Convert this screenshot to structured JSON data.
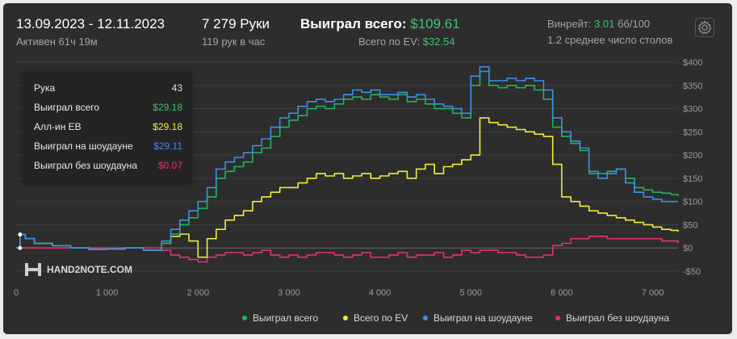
{
  "header": {
    "date_range": "13.09.2023 - 12.11.2023",
    "active": "Активен 61ч 19м",
    "hands": "7 279 Руки",
    "hands_per_hour": "119 рук в час",
    "won_total_label": "Выиграл всего:",
    "won_total_value": "$109.61",
    "ev_total_label": "Всего по EV:",
    "ev_total_value": "$32.54",
    "winrate_label": "Винрейт:",
    "winrate_value": "3.01",
    "winrate_unit": "бб/100",
    "avg_tables": "1.2 среднее число столов",
    "settings_icon": "gear-icon"
  },
  "tooltip": {
    "rows": [
      {
        "label": "Рука",
        "value": "43",
        "color": "#dddddd"
      },
      {
        "label": "Выиграл всего",
        "value": "$29.18",
        "color": "#3ec46d"
      },
      {
        "label": "Алл-ин EB",
        "value": "$29.18",
        "color": "#f2ec3c"
      },
      {
        "label": "Выиграл на шоудауне",
        "value": "$29.11",
        "color": "#3b8fe8"
      },
      {
        "label": "Выиграл без шоудауна",
        "value": "$0.07",
        "color": "#e0336f"
      }
    ]
  },
  "watermark": "HAND2NOTE.COM",
  "chart_data": {
    "type": "line",
    "xlim": [
      0,
      7279
    ],
    "ylim": [
      -50,
      400
    ],
    "x_ticks": [
      0,
      1000,
      2000,
      3000,
      4000,
      5000,
      6000,
      7000
    ],
    "x_tick_labels": [
      "0",
      "1 000",
      "2 000",
      "3 000",
      "4 000",
      "5 000",
      "6 000",
      "7 000"
    ],
    "y_ticks": [
      400,
      350,
      300,
      250,
      200,
      150,
      100,
      50,
      0,
      -50
    ],
    "y_tick_labels": [
      "$400",
      "$350",
      "$300",
      "$250",
      "$200",
      "$150",
      "$100",
      "$50",
      "$0",
      "-$50"
    ],
    "grid": true,
    "legend_position": "bottom-right",
    "x": [
      0,
      43,
      100,
      200,
      400,
      600,
      800,
      1000,
      1200,
      1400,
      1600,
      1700,
      1800,
      1900,
      2000,
      2100,
      2200,
      2300,
      2400,
      2500,
      2600,
      2700,
      2800,
      2900,
      3000,
      3100,
      3200,
      3300,
      3400,
      3500,
      3600,
      3700,
      3800,
      3900,
      4000,
      4100,
      4200,
      4300,
      4400,
      4500,
      4600,
      4700,
      4800,
      4900,
      5000,
      5100,
      5200,
      5300,
      5400,
      5500,
      5600,
      5700,
      5800,
      5900,
      6000,
      6100,
      6200,
      6300,
      6400,
      6500,
      6600,
      6700,
      6800,
      6900,
      7000,
      7100,
      7200,
      7279
    ],
    "series": [
      {
        "name": "Выиграл всего",
        "color": "#22b45c",
        "values": [
          0,
          29,
          20,
          10,
          5,
          0,
          -3,
          -2,
          0,
          -5,
          10,
          30,
          50,
          65,
          85,
          110,
          150,
          165,
          175,
          185,
          205,
          215,
          240,
          260,
          275,
          285,
          300,
          305,
          300,
          310,
          320,
          325,
          320,
          330,
          325,
          320,
          330,
          315,
          320,
          310,
          300,
          300,
          290,
          280,
          350,
          380,
          350,
          345,
          350,
          345,
          350,
          340,
          320,
          260,
          240,
          225,
          210,
          160,
          160,
          165,
          170,
          150,
          130,
          125,
          120,
          118,
          115,
          112
        ]
      },
      {
        "name": "Всего по EV",
        "color": "#f2ec3c",
        "values": [
          0,
          29,
          20,
          10,
          5,
          0,
          -3,
          -2,
          0,
          -5,
          10,
          25,
          30,
          15,
          -20,
          20,
          40,
          60,
          70,
          80,
          100,
          110,
          120,
          130,
          130,
          140,
          150,
          160,
          155,
          160,
          150,
          155,
          160,
          150,
          155,
          160,
          165,
          150,
          170,
          180,
          160,
          175,
          180,
          190,
          200,
          280,
          270,
          265,
          260,
          255,
          250,
          245,
          240,
          180,
          110,
          100,
          90,
          80,
          75,
          70,
          65,
          60,
          55,
          50,
          45,
          40,
          38,
          35
        ]
      },
      {
        "name": "Выиграл на шоудауне",
        "color": "#3b8fe8",
        "values": [
          0,
          29,
          20,
          10,
          5,
          0,
          -3,
          -2,
          0,
          -5,
          15,
          40,
          60,
          80,
          100,
          130,
          170,
          185,
          195,
          205,
          220,
          235,
          260,
          280,
          290,
          305,
          315,
          320,
          315,
          320,
          330,
          340,
          335,
          340,
          330,
          330,
          335,
          325,
          330,
          320,
          310,
          305,
          300,
          290,
          370,
          390,
          360,
          360,
          365,
          360,
          365,
          360,
          340,
          280,
          250,
          230,
          215,
          165,
          150,
          160,
          170,
          140,
          120,
          110,
          105,
          100,
          100,
          100
        ]
      },
      {
        "name": "Выиграл без шоудауна",
        "color": "#e0336f",
        "values": [
          0,
          0,
          0,
          0,
          0,
          0,
          0,
          0,
          0,
          0,
          -5,
          -15,
          -20,
          -25,
          -30,
          -20,
          -15,
          -10,
          -10,
          -15,
          -10,
          -5,
          -15,
          -20,
          -15,
          -20,
          -15,
          -10,
          -10,
          -15,
          -20,
          -15,
          -10,
          -20,
          -20,
          -15,
          -10,
          -20,
          -15,
          -15,
          -10,
          -20,
          -15,
          -5,
          -10,
          -5,
          -5,
          -10,
          -10,
          -15,
          -20,
          -20,
          -15,
          5,
          10,
          20,
          20,
          25,
          25,
          20,
          20,
          20,
          20,
          20,
          20,
          15,
          15,
          10
        ]
      }
    ]
  }
}
